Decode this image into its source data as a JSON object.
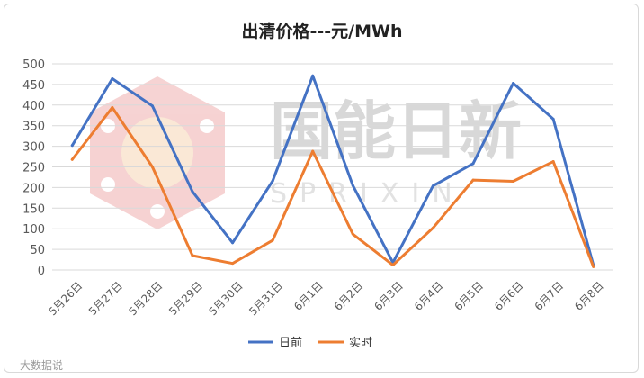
{
  "watermark": {
    "text": "国能日新",
    "sub": "SPRIXIN",
    "corner": "大数据说"
  },
  "chart_data": {
    "type": "line",
    "title": "出清价格---元/MWh",
    "categories": [
      "5月26日",
      "5月27日",
      "5月28日",
      "5月29日",
      "5月30日",
      "5月31日",
      "6月1日",
      "6月2日",
      "6月3日",
      "6月4日",
      "6月5日",
      "6月6日",
      "6月7日",
      "6月8日"
    ],
    "series": [
      {
        "name": "日前",
        "color": "#4472c4",
        "values": [
          302,
          464,
          398,
          190,
          66,
          216,
          471,
          205,
          18,
          204,
          258,
          453,
          366,
          12
        ]
      },
      {
        "name": "实时",
        "color": "#ed7d31",
        "values": [
          268,
          394,
          250,
          35,
          16,
          72,
          288,
          87,
          12,
          102,
          218,
          215,
          263,
          8
        ]
      }
    ],
    "ylim": [
      0,
      500
    ],
    "yticks": [
      0,
      50,
      100,
      150,
      200,
      250,
      300,
      350,
      400,
      450,
      500
    ],
    "grid": true,
    "legend": "bottom"
  }
}
